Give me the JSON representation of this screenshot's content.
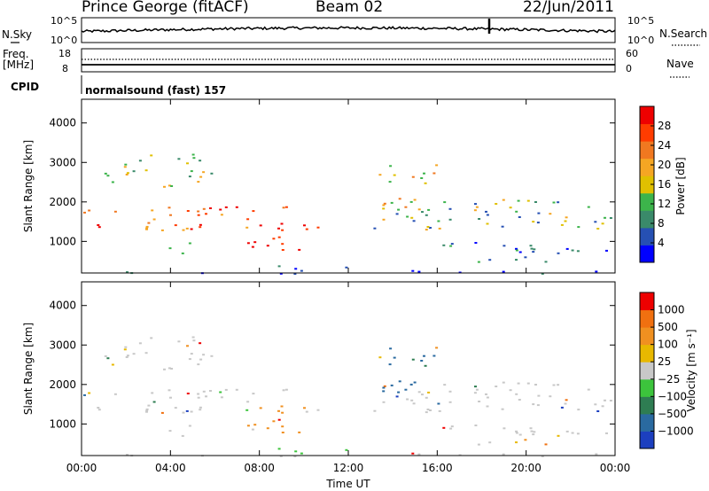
{
  "header": {
    "station": "Prince George (fitACF)",
    "beam": "Beam 02",
    "date": "22/Jun/2011"
  },
  "top_panels": {
    "nsky_label": "N.Sky",
    "nsky_ticks": [
      "10^5",
      "10^0"
    ],
    "nsearch_label": "N.Search",
    "nsearch_ticks": [
      "10^5",
      "10^0"
    ],
    "freq_label_1": "Freq.",
    "freq_label_2": "[MHz]",
    "freq_ticks": [
      "18",
      "8"
    ],
    "nave_label": "Nave",
    "nave_ticks": [
      "60",
      "0"
    ],
    "cpid_label": "CPID",
    "cpid_value": "normalsound (fast) 157"
  },
  "colors": {
    "power_scale": [
      "#0000ff",
      "#2650b3",
      "#3a8a6a",
      "#3cb44b",
      "#e0c000",
      "#f5a623",
      "#f07820",
      "#ff3c00",
      "#ee0000"
    ],
    "velocity_scale": [
      "#1c3fbf",
      "#2a6aa0",
      "#2e7d52",
      "#3cc43c",
      "#c8c8c8",
      "#e8b800",
      "#f09020",
      "#f07010",
      "#ee0000"
    ]
  },
  "chart_data": [
    {
      "type": "heatmap",
      "name": "power",
      "ylabel": "Slant Range [km]",
      "yticks": [
        "1000",
        "2000",
        "3000",
        "4000"
      ],
      "ylim": [
        200,
        4600
      ],
      "colorbar_label": "Power [dB]",
      "colorbar_ticks": [
        "4",
        "8",
        "12",
        "16",
        "20",
        "24",
        "28"
      ],
      "colorbar_range": [
        0,
        32
      ],
      "x": [
        "00:00",
        "04:00",
        "08:00",
        "12:00",
        "16:00",
        "20:00",
        "00:00"
      ]
    },
    {
      "type": "heatmap",
      "name": "velocity",
      "ylabel": "Slant Range [km]",
      "yticks": [
        "1000",
        "2000",
        "3000",
        "4000"
      ],
      "ylim": [
        200,
        4600
      ],
      "colorbar_label": "Velocity [m s⁻¹]",
      "colorbar_ticks": [
        "1000",
        "500",
        "100",
        "25",
        "−25",
        "−100",
        "−500",
        "−1000"
      ],
      "xlabel": "Time UT",
      "x": [
        "00:00",
        "04:00",
        "08:00",
        "12:00",
        "16:00",
        "20:00",
        "00:00"
      ]
    }
  ]
}
